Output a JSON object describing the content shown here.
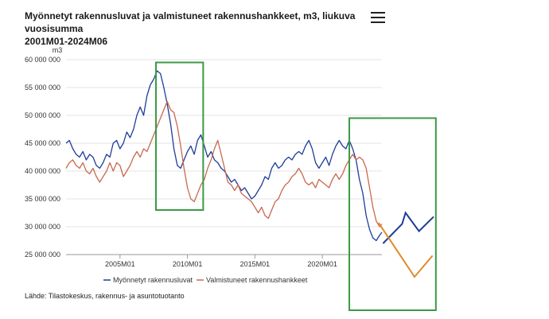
{
  "header": {
    "title_line1": "Myönnetyt rakennusluvat ja valmistuneet rakennushankkeet, m3, liukuva vuosisumma",
    "title_line2": "2001M01-2024M06",
    "menu_icon": "hamburger-menu-icon"
  },
  "footer": {
    "source": "Lähde: Tilastokeskus, rakennus- ja asuntotuotanto"
  },
  "chart_data": {
    "type": "line",
    "title": "Myönnetyt rakennusluvat ja valmistuneet rakennushankkeet, m3, liukuva vuosisumma 2001M01-2024M06",
    "ylabel": "m3",
    "ylim": [
      25000000,
      60000000
    ],
    "yticks": [
      {
        "value": 60000000,
        "label": "60 000 000"
      },
      {
        "value": 55000000,
        "label": "55 000 000"
      },
      {
        "value": 50000000,
        "label": "50 000 000"
      },
      {
        "value": 45000000,
        "label": "45 000 000"
      },
      {
        "value": 40000000,
        "label": "40 000 000"
      },
      {
        "value": 35000000,
        "label": "35 000 000"
      },
      {
        "value": 30000000,
        "label": "30 000 000"
      },
      {
        "value": 25000000,
        "label": "25 000 000"
      }
    ],
    "xlim": [
      "2001M01",
      "2024M06"
    ],
    "xticks": [
      {
        "value": "2005M01",
        "label": "2005M01"
      },
      {
        "value": "2010M01",
        "label": "2010M01"
      },
      {
        "value": "2015M01",
        "label": "2015M01"
      },
      {
        "value": "2020M01",
        "label": "2020M01"
      }
    ],
    "grid": "horizontal",
    "legend_position": "bottom",
    "series": [
      {
        "name": "Myönnetyt rakennusluvat",
        "color": "#1f3d99",
        "points": [
          [
            "2001M01",
            45000000
          ],
          [
            "2001M04",
            45500000
          ],
          [
            "2001M07",
            44000000
          ],
          [
            "2001M10",
            43000000
          ],
          [
            "2002M01",
            42500000
          ],
          [
            "2002M04",
            43500000
          ],
          [
            "2002M07",
            42000000
          ],
          [
            "2002M10",
            43000000
          ],
          [
            "2003M01",
            42500000
          ],
          [
            "2003M04",
            41000000
          ],
          [
            "2003M07",
            40500000
          ],
          [
            "2003M10",
            41500000
          ],
          [
            "2004M01",
            43000000
          ],
          [
            "2004M04",
            42500000
          ],
          [
            "2004M07",
            45000000
          ],
          [
            "2004M10",
            45500000
          ],
          [
            "2005M01",
            44000000
          ],
          [
            "2005M04",
            45000000
          ],
          [
            "2005M07",
            47000000
          ],
          [
            "2005M10",
            46000000
          ],
          [
            "2006M01",
            47500000
          ],
          [
            "2006M04",
            50000000
          ],
          [
            "2006M07",
            51500000
          ],
          [
            "2006M10",
            50000000
          ],
          [
            "2007M01",
            53500000
          ],
          [
            "2007M04",
            55500000
          ],
          [
            "2007M07",
            56500000
          ],
          [
            "2007M10",
            58000000
          ],
          [
            "2008M01",
            57500000
          ],
          [
            "2008M04",
            55000000
          ],
          [
            "2008M07",
            52000000
          ],
          [
            "2008M10",
            48500000
          ],
          [
            "2009M01",
            44000000
          ],
          [
            "2009M04",
            41000000
          ],
          [
            "2009M07",
            40500000
          ],
          [
            "2009M10",
            42000000
          ],
          [
            "2010M01",
            43500000
          ],
          [
            "2010M04",
            44500000
          ],
          [
            "2010M07",
            43000000
          ],
          [
            "2010M10",
            45500000
          ],
          [
            "2011M01",
            46500000
          ],
          [
            "2011M04",
            44500000
          ],
          [
            "2011M07",
            42500000
          ],
          [
            "2011M10",
            43500000
          ],
          [
            "2012M01",
            42000000
          ],
          [
            "2012M04",
            41500000
          ],
          [
            "2012M07",
            40500000
          ],
          [
            "2012M10",
            40000000
          ],
          [
            "2013M01",
            39000000
          ],
          [
            "2013M04",
            38000000
          ],
          [
            "2013M07",
            38500000
          ],
          [
            "2013M10",
            37500000
          ],
          [
            "2014M01",
            36500000
          ],
          [
            "2014M04",
            37000000
          ],
          [
            "2014M07",
            36000000
          ],
          [
            "2014M10",
            35000000
          ],
          [
            "2015M01",
            35500000
          ],
          [
            "2015M04",
            36500000
          ],
          [
            "2015M07",
            37500000
          ],
          [
            "2015M10",
            39000000
          ],
          [
            "2016M01",
            38500000
          ],
          [
            "2016M04",
            40500000
          ],
          [
            "2016M07",
            41500000
          ],
          [
            "2016M10",
            40500000
          ],
          [
            "2017M01",
            41000000
          ],
          [
            "2017M04",
            42000000
          ],
          [
            "2017M07",
            42500000
          ],
          [
            "2017M10",
            42000000
          ],
          [
            "2018M01",
            43000000
          ],
          [
            "2018M04",
            43500000
          ],
          [
            "2018M07",
            43000000
          ],
          [
            "2018M10",
            44500000
          ],
          [
            "2019M01",
            45500000
          ],
          [
            "2019M04",
            44000000
          ],
          [
            "2019M07",
            41500000
          ],
          [
            "2019M10",
            40500000
          ],
          [
            "2020M01",
            41500000
          ],
          [
            "2020M04",
            42500000
          ],
          [
            "2020M07",
            41000000
          ],
          [
            "2020M10",
            43000000
          ],
          [
            "2021M01",
            44500000
          ],
          [
            "2021M04",
            45500000
          ],
          [
            "2021M07",
            44500000
          ],
          [
            "2021M10",
            44000000
          ],
          [
            "2022M01",
            45500000
          ],
          [
            "2022M04",
            44000000
          ],
          [
            "2022M07",
            42000000
          ],
          [
            "2022M10",
            38500000
          ],
          [
            "2023M01",
            36000000
          ],
          [
            "2023M04",
            32000000
          ],
          [
            "2023M07",
            29500000
          ],
          [
            "2023M10",
            28000000
          ],
          [
            "2024M01",
            27500000
          ],
          [
            "2024M04",
            28500000
          ],
          [
            "2024M06",
            29000000
          ]
        ]
      },
      {
        "name": "Valmistuneet rakennushankkeet",
        "color": "#c8694f",
        "points": [
          [
            "2001M01",
            40500000
          ],
          [
            "2001M04",
            41500000
          ],
          [
            "2001M07",
            42000000
          ],
          [
            "2001M10",
            41000000
          ],
          [
            "2002M01",
            40500000
          ],
          [
            "2002M04",
            41500000
          ],
          [
            "2002M07",
            40000000
          ],
          [
            "2002M10",
            39500000
          ],
          [
            "2003M01",
            40500000
          ],
          [
            "2003M04",
            39000000
          ],
          [
            "2003M07",
            38000000
          ],
          [
            "2003M10",
            39000000
          ],
          [
            "2004M01",
            40000000
          ],
          [
            "2004M04",
            41500000
          ],
          [
            "2004M07",
            40000000
          ],
          [
            "2004M10",
            41500000
          ],
          [
            "2005M01",
            41000000
          ],
          [
            "2005M04",
            39000000
          ],
          [
            "2005M07",
            40000000
          ],
          [
            "2005M10",
            41000000
          ],
          [
            "2006M01",
            42500000
          ],
          [
            "2006M04",
            43500000
          ],
          [
            "2006M07",
            42500000
          ],
          [
            "2006M10",
            44000000
          ],
          [
            "2007M01",
            43500000
          ],
          [
            "2007M04",
            45000000
          ],
          [
            "2007M07",
            46500000
          ],
          [
            "2007M10",
            48000000
          ],
          [
            "2008M01",
            49500000
          ],
          [
            "2008M04",
            51000000
          ],
          [
            "2008M07",
            52500000
          ],
          [
            "2008M10",
            51000000
          ],
          [
            "2009M01",
            50500000
          ],
          [
            "2009M04",
            48000000
          ],
          [
            "2009M07",
            44500000
          ],
          [
            "2009M10",
            40500000
          ],
          [
            "2010M01",
            37000000
          ],
          [
            "2010M04",
            35000000
          ],
          [
            "2010M07",
            34500000
          ],
          [
            "2010M10",
            36000000
          ],
          [
            "2011M01",
            37500000
          ],
          [
            "2011M04",
            38500000
          ],
          [
            "2011M07",
            40500000
          ],
          [
            "2011M10",
            42000000
          ],
          [
            "2012M01",
            44000000
          ],
          [
            "2012M04",
            45500000
          ],
          [
            "2012M07",
            43000000
          ],
          [
            "2012M10",
            40500000
          ],
          [
            "2013M01",
            38000000
          ],
          [
            "2013M04",
            37500000
          ],
          [
            "2013M07",
            36500000
          ],
          [
            "2013M10",
            37500000
          ],
          [
            "2014M01",
            36000000
          ],
          [
            "2014M04",
            35500000
          ],
          [
            "2014M07",
            35000000
          ],
          [
            "2014M10",
            34500000
          ],
          [
            "2015M01",
            33500000
          ],
          [
            "2015M04",
            32500000
          ],
          [
            "2015M07",
            33500000
          ],
          [
            "2015M10",
            32000000
          ],
          [
            "2016M01",
            31500000
          ],
          [
            "2016M04",
            33000000
          ],
          [
            "2016M07",
            34500000
          ],
          [
            "2016M10",
            35000000
          ],
          [
            "2017M01",
            36500000
          ],
          [
            "2017M04",
            37500000
          ],
          [
            "2017M07",
            38000000
          ],
          [
            "2017M10",
            39000000
          ],
          [
            "2018M01",
            39500000
          ],
          [
            "2018M04",
            40500000
          ],
          [
            "2018M07",
            39500000
          ],
          [
            "2018M10",
            38000000
          ],
          [
            "2019M01",
            37500000
          ],
          [
            "2019M04",
            38000000
          ],
          [
            "2019M07",
            37000000
          ],
          [
            "2019M10",
            38500000
          ],
          [
            "2020M01",
            38000000
          ],
          [
            "2020M04",
            37500000
          ],
          [
            "2020M07",
            37000000
          ],
          [
            "2020M10",
            38500000
          ],
          [
            "2021M01",
            39500000
          ],
          [
            "2021M04",
            38500000
          ],
          [
            "2021M07",
            39500000
          ],
          [
            "2021M10",
            41000000
          ],
          [
            "2022M01",
            42000000
          ],
          [
            "2022M04",
            43000000
          ],
          [
            "2022M07",
            42000000
          ],
          [
            "2022M10",
            42500000
          ],
          [
            "2023M01",
            42000000
          ],
          [
            "2023M04",
            40500000
          ],
          [
            "2023M07",
            37000000
          ],
          [
            "2023M10",
            33500000
          ],
          [
            "2024M01",
            31000000
          ],
          [
            "2024M04",
            30000000
          ],
          [
            "2024M06",
            30500000
          ]
        ]
      }
    ],
    "annotations": [
      {
        "type": "rectangle",
        "color": "#3a9a44",
        "x_range": [
          "2007M09",
          "2011M03"
        ],
        "y_range": [
          33000000,
          59500000
        ]
      },
      {
        "type": "rectangle",
        "color": "#3a9a44",
        "x_range": [
          "2022M01",
          "2028M06"
        ],
        "y_range": [
          15000000,
          49500000
        ]
      },
      {
        "type": "sketch-line",
        "color": "#1f3d99",
        "points": [
          [
            "2024M07",
            27000000
          ],
          [
            "2025M12",
            30500000
          ],
          [
            "2026M03",
            32500000
          ],
          [
            "2027M03",
            29200000
          ],
          [
            "2028M04",
            31800000
          ]
        ]
      },
      {
        "type": "sketch-line",
        "color": "#e08a2a",
        "points": [
          [
            "2024M03",
            30700000
          ],
          [
            "2026M11",
            21000000
          ],
          [
            "2028M03",
            24800000
          ]
        ]
      }
    ]
  }
}
